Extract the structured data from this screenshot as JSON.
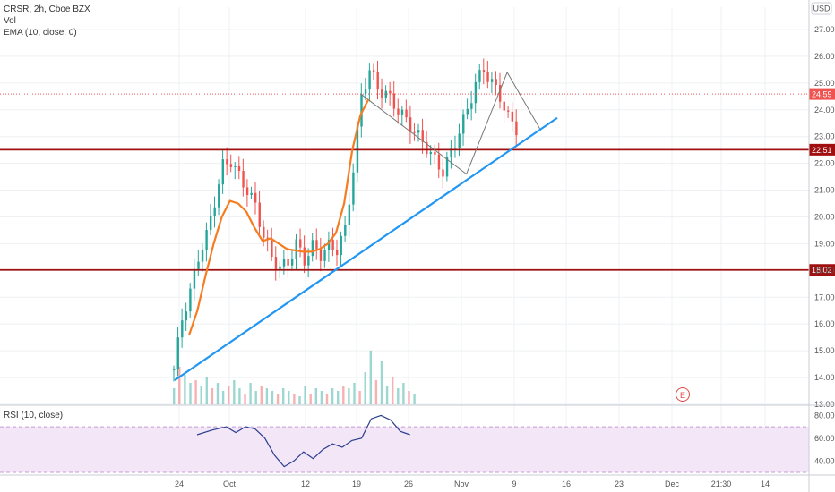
{
  "legend": {
    "symbol": "CRSR, 2h, Cboe BZX",
    "vol": "Vol",
    "ema": "EMA (10, close, 0)",
    "rsi": "RSI (10, close)"
  },
  "currency": "USD",
  "earnings_marker": "E",
  "colors": {
    "up": "#26a69a",
    "down": "#ef5350",
    "ema": "#f57c20",
    "trendline": "#2196f3",
    "resistance": "#a01010",
    "rsi_line": "#2a3f8f",
    "rsi_band": "#f3e6f7",
    "price_tag": "#ef5350",
    "grid": "#eef0f3"
  },
  "chart_data": {
    "type": "candlestick",
    "price_axis": {
      "range": [
        13.0,
        27.5
      ],
      "ticks": [
        "27.00",
        "26.00",
        "25.00",
        "24.00",
        "23.00",
        "22.00",
        "21.00",
        "20.00",
        "19.00",
        "18.00",
        "17.00",
        "16.00",
        "15.00",
        "14.00",
        "13.00"
      ]
    },
    "time_axis": {
      "labels": [
        "24",
        "Oct",
        "12",
        "19",
        "26",
        "Nov",
        "9",
        "16",
        "23",
        "Dec",
        "21:30",
        "14"
      ]
    },
    "last_price": "24.59",
    "levels": [
      {
        "label": "22.51",
        "value": 22.51
      },
      {
        "label": "18.02",
        "value": 18.02
      }
    ],
    "price_path": [
      [
        0,
        14.3
      ],
      [
        2,
        16.2
      ],
      [
        4,
        17.2
      ],
      [
        6,
        18.5
      ],
      [
        8,
        19.3
      ],
      [
        10,
        20.6
      ],
      [
        12,
        21.9
      ],
      [
        14,
        22.1
      ],
      [
        16,
        21.5
      ],
      [
        18,
        21.0
      ],
      [
        20,
        20.4
      ],
      [
        22,
        19.3
      ],
      [
        24,
        18.5
      ],
      [
        26,
        18.1
      ],
      [
        28,
        18.3
      ],
      [
        30,
        19.0
      ],
      [
        32,
        18.4
      ],
      [
        34,
        18.9
      ],
      [
        36,
        18.6
      ],
      [
        38,
        18.9
      ],
      [
        40,
        18.8
      ],
      [
        42,
        19.5
      ],
      [
        44,
        21.8
      ],
      [
        46,
        24.5
      ],
      [
        48,
        25.5
      ],
      [
        50,
        24.8
      ],
      [
        52,
        24.6
      ],
      [
        54,
        24.2
      ],
      [
        56,
        23.8
      ],
      [
        58,
        23.4
      ],
      [
        60,
        23.0
      ],
      [
        62,
        22.6
      ],
      [
        64,
        22.1
      ],
      [
        66,
        21.7
      ],
      [
        68,
        22.4
      ],
      [
        70,
        23.2
      ],
      [
        72,
        24.0
      ],
      [
        74,
        25.0
      ],
      [
        76,
        25.5
      ],
      [
        78,
        25.0
      ],
      [
        80,
        24.5
      ],
      [
        82,
        23.7
      ],
      [
        84,
        23.3
      ]
    ],
    "ema_10": [
      [
        4,
        15.6
      ],
      [
        6,
        16.5
      ],
      [
        8,
        17.8
      ],
      [
        10,
        19.0
      ],
      [
        12,
        20.0
      ],
      [
        14,
        20.6
      ],
      [
        16,
        20.5
      ],
      [
        18,
        20.2
      ],
      [
        20,
        19.6
      ],
      [
        22,
        19.1
      ],
      [
        24,
        19.2
      ],
      [
        26,
        19.0
      ],
      [
        28,
        18.8
      ],
      [
        30,
        18.75
      ],
      [
        32,
        18.7
      ],
      [
        34,
        18.7
      ],
      [
        36,
        18.8
      ],
      [
        38,
        19.0
      ],
      [
        40,
        19.4
      ],
      [
        42,
        20.5
      ],
      [
        44,
        22.5
      ],
      [
        46,
        23.8
      ],
      [
        48,
        24.4
      ]
    ],
    "volume": [
      6,
      14,
      11,
      8,
      9,
      7,
      10,
      6,
      8,
      5,
      7,
      9,
      6,
      4,
      8,
      5,
      7,
      6,
      5,
      4,
      6,
      5,
      4,
      3,
      7,
      4,
      6,
      5,
      4,
      6,
      5,
      7,
      6,
      8,
      5,
      12,
      20,
      9,
      16,
      7,
      10,
      6,
      8,
      5,
      4
    ],
    "rsi": {
      "range": [
        30,
        85
      ],
      "ticks": [
        "80.00",
        "60.00",
        "40.00"
      ],
      "band": [
        30,
        70
      ],
      "values": [
        [
          0,
          63
        ],
        [
          3,
          67
        ],
        [
          6,
          70
        ],
        [
          8,
          65
        ],
        [
          10,
          70
        ],
        [
          12,
          68
        ],
        [
          14,
          60
        ],
        [
          16,
          45
        ],
        [
          18,
          35
        ],
        [
          20,
          40
        ],
        [
          22,
          48
        ],
        [
          24,
          42
        ],
        [
          26,
          50
        ],
        [
          28,
          55
        ],
        [
          30,
          52
        ],
        [
          32,
          58
        ],
        [
          34,
          60
        ],
        [
          36,
          77
        ],
        [
          38,
          80
        ],
        [
          40,
          76
        ],
        [
          42,
          66
        ],
        [
          44,
          63
        ]
      ]
    }
  }
}
